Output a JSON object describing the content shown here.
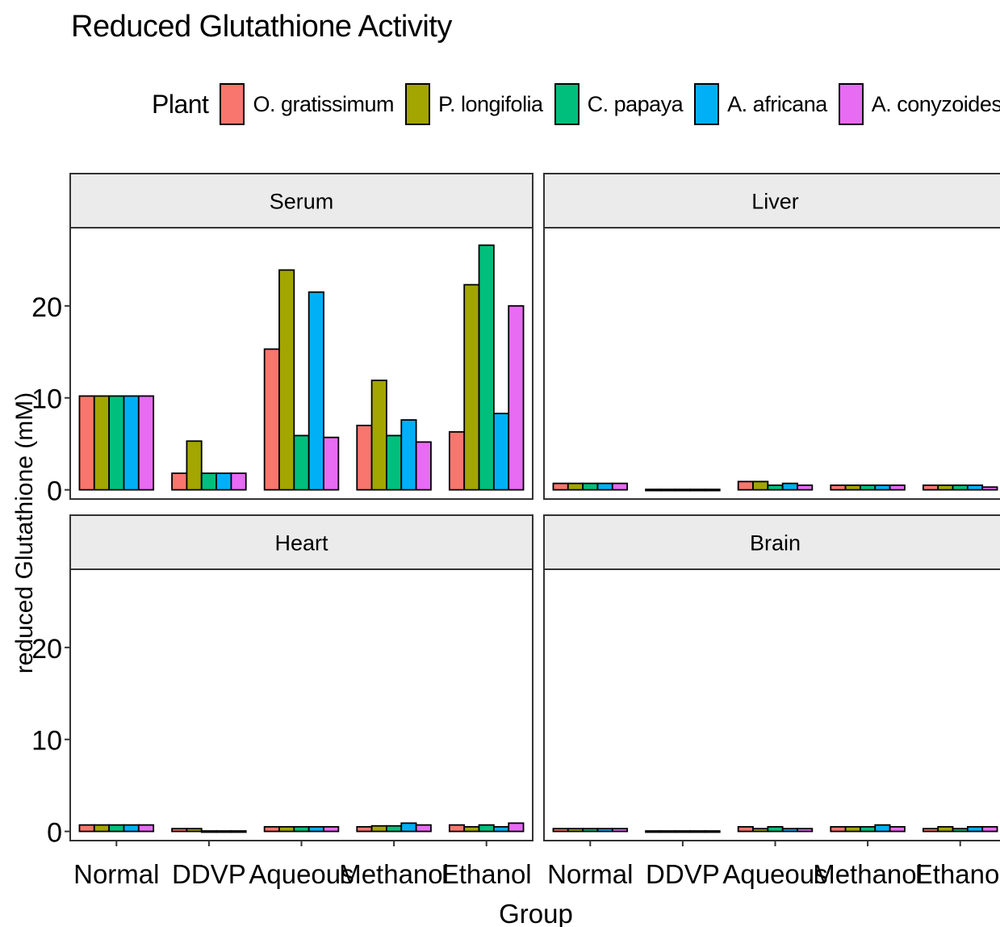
{
  "chart_data": {
    "type": "bar",
    "title": "Reduced Glutathione Activity",
    "xlabel": "Group",
    "ylabel": "reduced Glutathione (mM)",
    "ylim": [
      -1,
      28.5
    ],
    "yticks": [
      0,
      10,
      20
    ],
    "categories": [
      "Normal",
      "DDVP",
      "Aqueous",
      "Methanol",
      "Ethanol"
    ],
    "legend": {
      "title": "Plant",
      "position": "top",
      "entries": [
        {
          "name": "O. gratissimum",
          "color": "#F8766D"
        },
        {
          "name": "P. longifolia",
          "color": "#A3A500"
        },
        {
          "name": "C. papaya",
          "color": "#00BF7D"
        },
        {
          "name": "A. africana",
          "color": "#00B0F6"
        },
        {
          "name": "A. conyzoides",
          "color": "#E76BF3"
        }
      ]
    },
    "grid": false,
    "panels": [
      {
        "name": "Serum",
        "series": [
          {
            "name": "O. gratissimum",
            "values": [
              10.2,
              1.8,
              15.3,
              7.0,
              6.3
            ]
          },
          {
            "name": "P. longifolia",
            "values": [
              10.2,
              5.3,
              23.9,
              11.9,
              22.3
            ]
          },
          {
            "name": "C. papaya",
            "values": [
              10.2,
              1.8,
              5.9,
              5.9,
              26.6
            ]
          },
          {
            "name": "A. africana",
            "values": [
              10.2,
              1.8,
              21.5,
              7.6,
              8.3
            ]
          },
          {
            "name": "A. conyzoides",
            "values": [
              10.2,
              1.8,
              5.7,
              5.2,
              20.0
            ]
          }
        ]
      },
      {
        "name": "Liver",
        "series": [
          {
            "name": "O. gratissimum",
            "values": [
              0.7,
              0.05,
              0.9,
              0.5,
              0.5
            ]
          },
          {
            "name": "P. longifolia",
            "values": [
              0.7,
              0.05,
              0.9,
              0.5,
              0.5
            ]
          },
          {
            "name": "C. papaya",
            "values": [
              0.7,
              0.05,
              0.5,
              0.5,
              0.5
            ]
          },
          {
            "name": "A. africana",
            "values": [
              0.7,
              0.05,
              0.7,
              0.5,
              0.5
            ]
          },
          {
            "name": "A. conyzoides",
            "values": [
              0.7,
              0.05,
              0.5,
              0.5,
              0.3
            ]
          }
        ]
      },
      {
        "name": "Heart",
        "series": [
          {
            "name": "O. gratissimum",
            "values": [
              0.7,
              0.3,
              0.5,
              0.5,
              0.7
            ]
          },
          {
            "name": "P. longifolia",
            "values": [
              0.7,
              0.3,
              0.5,
              0.6,
              0.5
            ]
          },
          {
            "name": "C. papaya",
            "values": [
              0.7,
              0.05,
              0.5,
              0.6,
              0.7
            ]
          },
          {
            "name": "A. africana",
            "values": [
              0.7,
              0.05,
              0.5,
              0.9,
              0.5
            ]
          },
          {
            "name": "A. conyzoides",
            "values": [
              0.7,
              0.05,
              0.5,
              0.7,
              0.9
            ]
          }
        ]
      },
      {
        "name": "Brain",
        "series": [
          {
            "name": "O. gratissimum",
            "values": [
              0.3,
              0.05,
              0.5,
              0.5,
              0.3
            ]
          },
          {
            "name": "P. longifolia",
            "values": [
              0.3,
              0.05,
              0.3,
              0.5,
              0.5
            ]
          },
          {
            "name": "C. papaya",
            "values": [
              0.3,
              0.05,
              0.5,
              0.5,
              0.3
            ]
          },
          {
            "name": "A. africana",
            "values": [
              0.3,
              0.05,
              0.3,
              0.7,
              0.5
            ]
          },
          {
            "name": "A. conyzoides",
            "values": [
              0.3,
              0.05,
              0.3,
              0.5,
              0.5
            ]
          }
        ]
      }
    ]
  }
}
